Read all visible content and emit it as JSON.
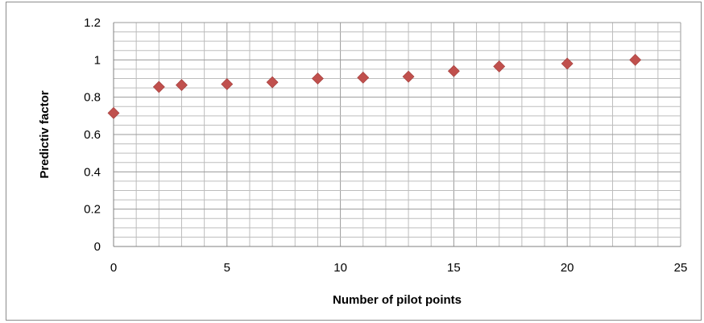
{
  "chart_data": {
    "type": "scatter",
    "title": "",
    "xlabel": "Number of pilot points",
    "ylabel": "Predictiv factor",
    "xlim": [
      0,
      25
    ],
    "ylim": [
      0,
      1.2
    ],
    "x_ticks": [
      "0",
      "5",
      "10",
      "15",
      "20",
      "25"
    ],
    "y_ticks": [
      "0",
      "0.2",
      "0.4",
      "0.6",
      "0.8",
      "1",
      "1.2"
    ],
    "x_minor_step": 1,
    "y_minor_step": 0.05,
    "grid": true,
    "legend": "none",
    "marker": "diamond",
    "marker_color": "#c0504d",
    "points": [
      {
        "x": 0,
        "y": 0.715
      },
      {
        "x": 2,
        "y": 0.855
      },
      {
        "x": 3,
        "y": 0.865
      },
      {
        "x": 5,
        "y": 0.87
      },
      {
        "x": 7,
        "y": 0.88
      },
      {
        "x": 9,
        "y": 0.9
      },
      {
        "x": 11,
        "y": 0.905
      },
      {
        "x": 13,
        "y": 0.91
      },
      {
        "x": 15,
        "y": 0.94
      },
      {
        "x": 17,
        "y": 0.965
      },
      {
        "x": 20,
        "y": 0.98
      },
      {
        "x": 23,
        "y": 1.0
      }
    ]
  }
}
